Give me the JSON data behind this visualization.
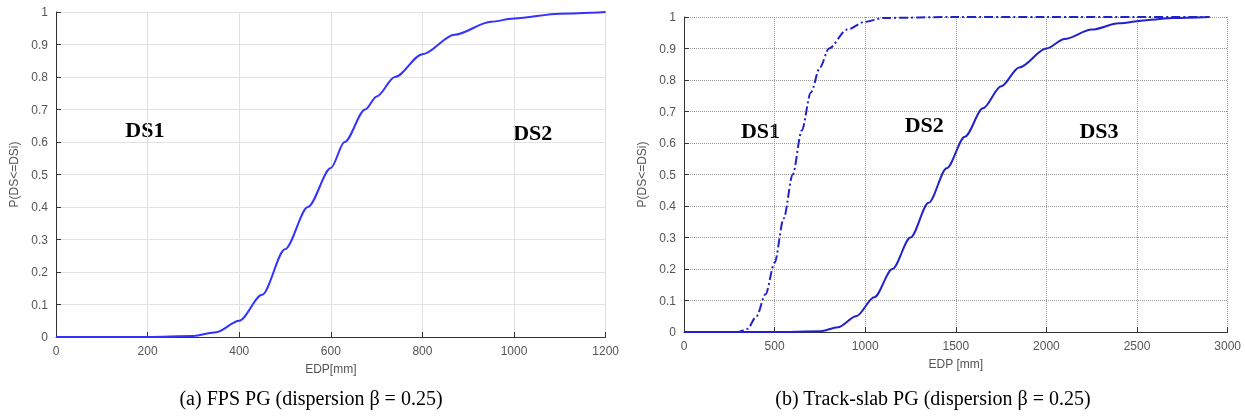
{
  "chart_data": [
    {
      "type": "line",
      "title": "(a) FPS PG (dispersion β = 0.25)",
      "xlabel": "EDP[mm]",
      "ylabel": "P(DS<=DSi)",
      "xlim": [
        0,
        1200
      ],
      "xticks": [
        0,
        200,
        400,
        600,
        800,
        1000,
        1200
      ],
      "ylim": [
        0,
        1
      ],
      "yticks": [
        0,
        0.1,
        0.2,
        0.3,
        0.4,
        0.5,
        0.6,
        0.7,
        0.8,
        0.9,
        1
      ],
      "grid": true,
      "marker": "none",
      "annotations": [
        "DS1",
        "DS2"
      ],
      "series": [
        {
          "color": "#3333ff",
          "line_style": "solid",
          "x": [
            0,
            100,
            200,
            300,
            350,
            400,
            450,
            500,
            550,
            600,
            630,
            675,
            700,
            740,
            800,
            870,
            950,
            1000,
            1100,
            1200
          ],
          "values": [
            0,
            0,
            0,
            0.003,
            0.015,
            0.05,
            0.13,
            0.27,
            0.4,
            0.52,
            0.6,
            0.7,
            0.74,
            0.8,
            0.87,
            0.93,
            0.97,
            0.98,
            0.995,
            1
          ]
        }
      ]
    },
    {
      "type": "line",
      "title": "(b) Track-slab PG (dispersion β = 0.25)",
      "xlabel": "EDP [mm]",
      "ylabel": "P(DS<=DSi)",
      "xlim": [
        0,
        3000
      ],
      "xticks": [
        0,
        500,
        1000,
        1500,
        2000,
        2500,
        3000
      ],
      "ylim": [
        0,
        1
      ],
      "yticks": [
        0,
        0.1,
        0.2,
        0.3,
        0.4,
        0.5,
        0.6,
        0.7,
        0.8,
        0.9,
        1
      ],
      "grid": true,
      "marker": "none",
      "annotations": [
        "DS1",
        "DS2",
        "DS3"
      ],
      "series": [
        {
          "color": "#2222cc",
          "line_style": "dashed",
          "x": [
            0,
            300,
            350,
            400,
            450,
            500,
            550,
            600,
            650,
            700,
            750,
            800,
            900,
            1000,
            1100,
            1500,
            2000,
            2500,
            2900
          ],
          "values": [
            0,
            0,
            0.01,
            0.05,
            0.12,
            0.22,
            0.36,
            0.5,
            0.64,
            0.76,
            0.84,
            0.9,
            0.96,
            0.985,
            0.997,
            1,
            1,
            1,
            1
          ]
        },
        {
          "color": "#2222cc",
          "line_style": "solid",
          "x": [
            0,
            500,
            750,
            850,
            950,
            1050,
            1150,
            1250,
            1350,
            1450,
            1550,
            1650,
            1750,
            1850,
            2000,
            2100,
            2250,
            2400,
            2550,
            2700,
            2900
          ],
          "values": [
            0,
            0,
            0.002,
            0.015,
            0.05,
            0.11,
            0.2,
            0.3,
            0.41,
            0.52,
            0.62,
            0.71,
            0.78,
            0.84,
            0.9,
            0.93,
            0.96,
            0.98,
            0.99,
            0.997,
            1
          ]
        }
      ]
    }
  ]
}
